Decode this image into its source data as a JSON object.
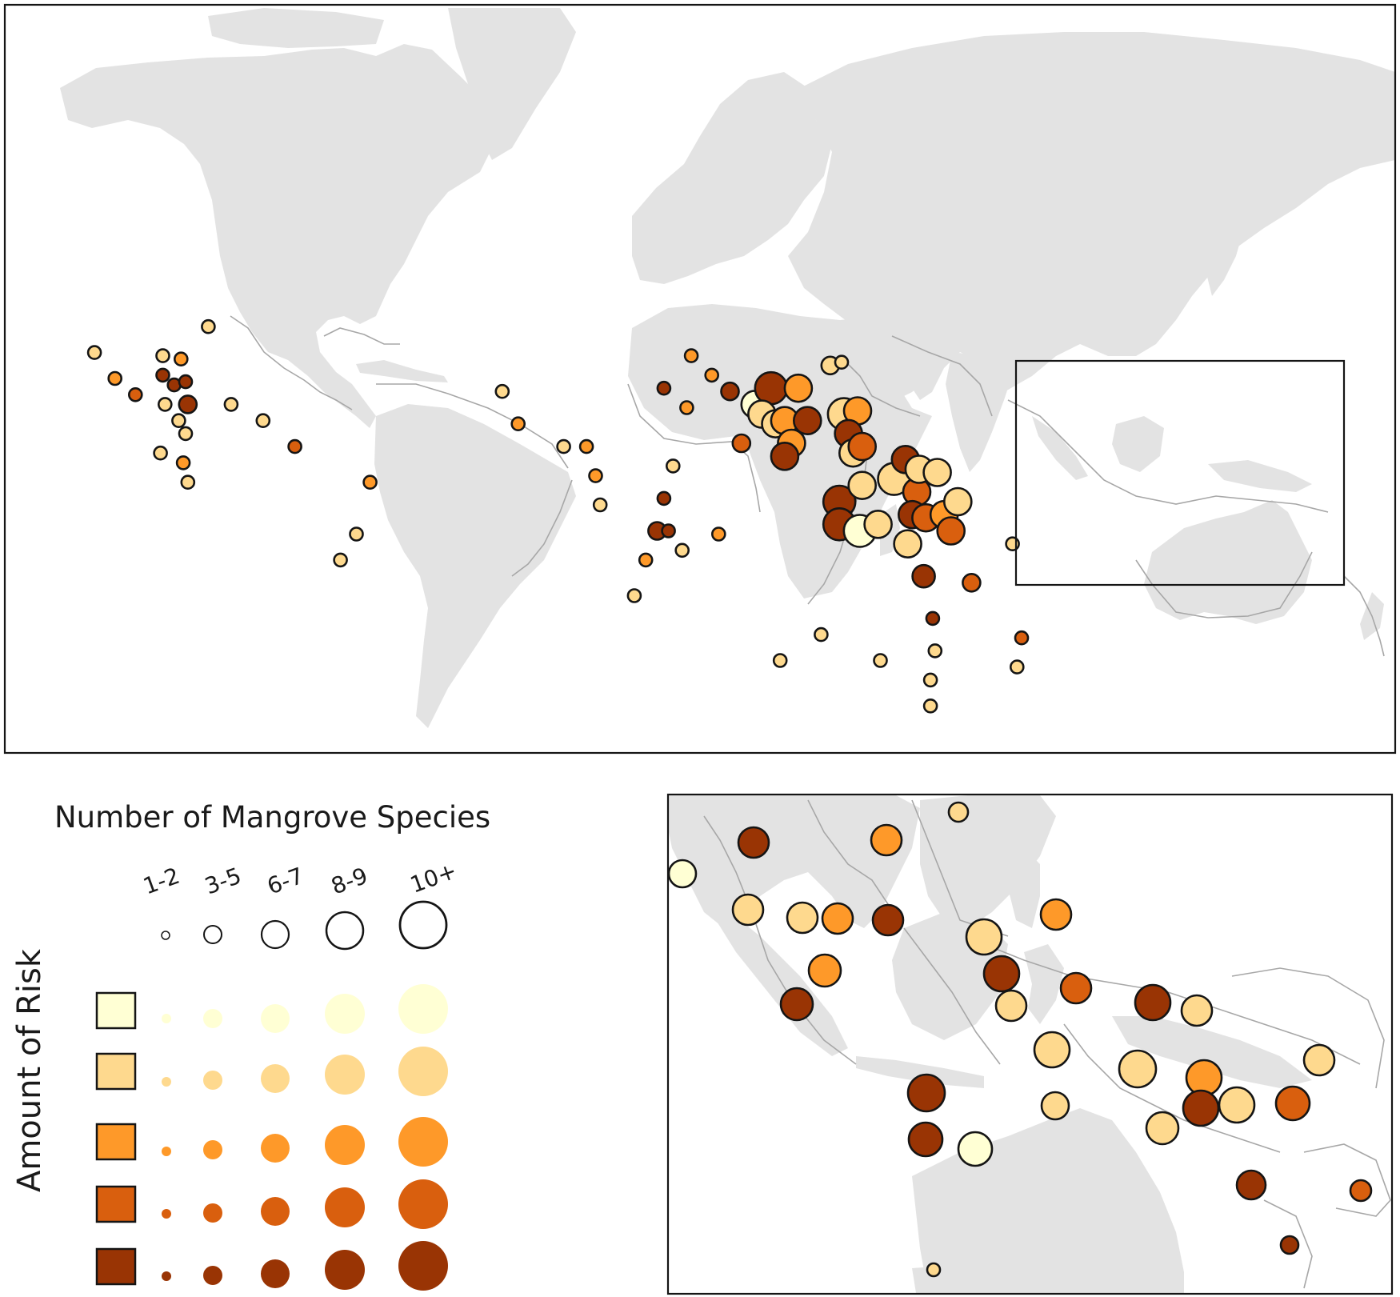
{
  "legend": {
    "size_title": "Number of Mangrove Species",
    "risk_title": "Amount of Risk",
    "size_classes": [
      "1-2",
      "3-5",
      "6-7",
      "8-9",
      "10+"
    ]
  },
  "colors": {
    "risk": [
      "#ffffd4",
      "#fed98e",
      "#fe9929",
      "#d95f0e",
      "#993404"
    ],
    "land": "#e3e3e3",
    "ecoregion_outline": "#a7a7a7"
  },
  "map_data": {
    "world_sites": [
      {
        "lon": -105.5,
        "lat": 21.5,
        "species": 3,
        "risk": 2
      },
      {
        "lon": -101,
        "lat": 17.5,
        "species": 3,
        "risk": 3
      },
      {
        "lon": -96.5,
        "lat": 15,
        "species": 3,
        "risk": 4
      },
      {
        "lon": -90.5,
        "lat": 21,
        "species": 3,
        "risk": 2
      },
      {
        "lon": -86.5,
        "lat": 20.5,
        "species": 3,
        "risk": 3
      },
      {
        "lon": -80.5,
        "lat": 25.5,
        "species": 3,
        "risk": 2
      },
      {
        "lon": -90.5,
        "lat": 18,
        "species": 3,
        "risk": 5
      },
      {
        "lon": -88,
        "lat": 16.5,
        "species": 3,
        "risk": 5
      },
      {
        "lon": -85.5,
        "lat": 17,
        "species": 3,
        "risk": 5
      },
      {
        "lon": -85,
        "lat": 13.5,
        "species": 4,
        "risk": 5
      },
      {
        "lon": -90,
        "lat": 13.5,
        "species": 3,
        "risk": 2
      },
      {
        "lon": -87,
        "lat": 11,
        "species": 3,
        "risk": 2
      },
      {
        "lon": -85.5,
        "lat": 9,
        "species": 3,
        "risk": 2
      },
      {
        "lon": -86,
        "lat": 4.5,
        "species": 3,
        "risk": 3
      },
      {
        "lon": -91,
        "lat": 6,
        "species": 3,
        "risk": 2
      },
      {
        "lon": -85,
        "lat": 1.5,
        "species": 3,
        "risk": 2
      },
      {
        "lon": -75.5,
        "lat": 13.5,
        "species": 3,
        "risk": 2
      },
      {
        "lon": -68.5,
        "lat": 11,
        "species": 3,
        "risk": 2
      },
      {
        "lon": -61.5,
        "lat": 7,
        "species": 3,
        "risk": 4
      },
      {
        "lon": -45,
        "lat": 1.5,
        "species": 3,
        "risk": 3
      },
      {
        "lon": -48,
        "lat": -6.5,
        "species": 3,
        "risk": 2
      },
      {
        "lon": -51.5,
        "lat": -10.5,
        "species": 3,
        "risk": 2
      },
      {
        "lon": -16,
        "lat": 15.5,
        "species": 3,
        "risk": 2
      },
      {
        "lon": -12.5,
        "lat": 10.5,
        "species": 3,
        "risk": 3
      },
      {
        "lon": -2.5,
        "lat": 7,
        "species": 3,
        "risk": 2
      },
      {
        "lon": 2.5,
        "lat": 7,
        "species": 3,
        "risk": 3
      },
      {
        "lon": 4.5,
        "lat": 2.5,
        "species": 3,
        "risk": 3
      },
      {
        "lon": 5.5,
        "lat": -2,
        "species": 3,
        "risk": 2
      },
      {
        "lon": 19.5,
        "lat": 16,
        "species": 3,
        "risk": 5
      },
      {
        "lon": 24.5,
        "lat": 13,
        "species": 3,
        "risk": 3
      },
      {
        "lon": 21.5,
        "lat": 4,
        "species": 3,
        "risk": 2
      },
      {
        "lon": 19.5,
        "lat": -1,
        "species": 3,
        "risk": 5
      },
      {
        "lon": 18,
        "lat": -6,
        "species": 4,
        "risk": 5
      },
      {
        "lon": 20.5,
        "lat": -6,
        "species": 3,
        "risk": 5
      },
      {
        "lon": 23.5,
        "lat": -9,
        "species": 3,
        "risk": 2
      },
      {
        "lon": 15.5,
        "lat": -10.5,
        "species": 3,
        "risk": 3
      },
      {
        "lon": 13,
        "lat": -16,
        "species": 3,
        "risk": 2
      },
      {
        "lon": 31.5,
        "lat": -6.5,
        "species": 3,
        "risk": 3
      },
      {
        "lon": 25.5,
        "lat": 21,
        "species": 3,
        "risk": 3
      },
      {
        "lon": 30,
        "lat": 18,
        "species": 3,
        "risk": 3
      },
      {
        "lon": 34,
        "lat": 15.5,
        "species": 5,
        "risk": 5
      },
      {
        "lon": 36.5,
        "lat": 7.5,
        "species": 5,
        "risk": 4
      },
      {
        "lon": 39.5,
        "lat": 13.5,
        "species": 8,
        "risk": 1
      },
      {
        "lon": 43,
        "lat": 16,
        "species": 10,
        "risk": 5
      },
      {
        "lon": 41,
        "lat": 12,
        "species": 8,
        "risk": 2
      },
      {
        "lon": 44,
        "lat": 10.5,
        "species": 8,
        "risk": 2
      },
      {
        "lon": 46,
        "lat": 11,
        "species": 8,
        "risk": 3
      },
      {
        "lon": 47.5,
        "lat": 7.5,
        "species": 8,
        "risk": 3
      },
      {
        "lon": 46,
        "lat": 5.5,
        "species": 8,
        "risk": 5
      },
      {
        "lon": 51,
        "lat": 11,
        "species": 8,
        "risk": 5
      },
      {
        "lon": 49,
        "lat": 16,
        "species": 8,
        "risk": 3
      },
      {
        "lon": 56,
        "lat": 19.5,
        "species": 4,
        "risk": 2
      },
      {
        "lon": 59,
        "lat": 12,
        "species": 10,
        "risk": 2
      },
      {
        "lon": 62,
        "lat": 12.5,
        "species": 8,
        "risk": 3
      },
      {
        "lon": 60,
        "lat": 9,
        "species": 8,
        "risk": 5
      },
      {
        "lon": 61,
        "lat": 6,
        "species": 8,
        "risk": 2
      },
      {
        "lon": 63,
        "lat": 7,
        "species": 8,
        "risk": 4
      },
      {
        "lon": 58,
        "lat": -1.5,
        "species": 10,
        "risk": 5
      },
      {
        "lon": 58,
        "lat": -5,
        "species": 10,
        "risk": 5
      },
      {
        "lon": 62.5,
        "lat": -6,
        "species": 10,
        "risk": 1
      },
      {
        "lon": 63,
        "lat": 1,
        "species": 8,
        "risk": 2
      },
      {
        "lon": 66.5,
        "lat": -5,
        "species": 8,
        "risk": 2
      },
      {
        "lon": 70,
        "lat": 2,
        "species": 10,
        "risk": 2
      },
      {
        "lon": 72.5,
        "lat": 5,
        "species": 8,
        "risk": 5
      },
      {
        "lon": 75,
        "lat": 0,
        "species": 8,
        "risk": 4
      },
      {
        "lon": 73,
        "lat": -8,
        "species": 8,
        "risk": 2
      },
      {
        "lon": 75.5,
        "lat": 3.5,
        "species": 8,
        "risk": 2
      },
      {
        "lon": 79.5,
        "lat": 3,
        "species": 8,
        "risk": 2
      },
      {
        "lon": 74,
        "lat": -3.5,
        "species": 8,
        "risk": 5
      },
      {
        "lon": 77,
        "lat": -4,
        "species": 8,
        "risk": 4
      },
      {
        "lon": 81,
        "lat": -3.5,
        "species": 8,
        "risk": 3
      },
      {
        "lon": 84,
        "lat": -1.5,
        "species": 8,
        "risk": 2
      },
      {
        "lon": 82.5,
        "lat": -6,
        "species": 8,
        "risk": 4
      },
      {
        "lon": 76.5,
        "lat": -13,
        "species": 6,
        "risk": 5
      },
      {
        "lon": 78.5,
        "lat": -19.5,
        "species": 3,
        "risk": 5
      },
      {
        "lon": 87,
        "lat": -14,
        "species": 5,
        "risk": 4
      },
      {
        "lon": 96,
        "lat": -8,
        "species": 3,
        "risk": 2
      },
      {
        "lon": 98,
        "lat": -22.5,
        "species": 3,
        "risk": 4
      },
      {
        "lon": 97,
        "lat": -27,
        "species": 3,
        "risk": 2
      },
      {
        "lon": 58.5,
        "lat": 20,
        "species": 3,
        "risk": 2
      },
      {
        "lon": 79,
        "lat": -24.5,
        "species": 3,
        "risk": 2
      },
      {
        "lon": 78,
        "lat": -29,
        "species": 3,
        "risk": 2
      },
      {
        "lon": 78,
        "lat": -33,
        "species": 3,
        "risk": 2
      },
      {
        "lon": 54,
        "lat": -22,
        "species": 3,
        "risk": 2
      },
      {
        "lon": 67,
        "lat": -26,
        "species": 3,
        "risk": 2
      },
      {
        "lon": 45,
        "lat": -26,
        "species": 3,
        "risk": 2
      }
    ]
  }
}
